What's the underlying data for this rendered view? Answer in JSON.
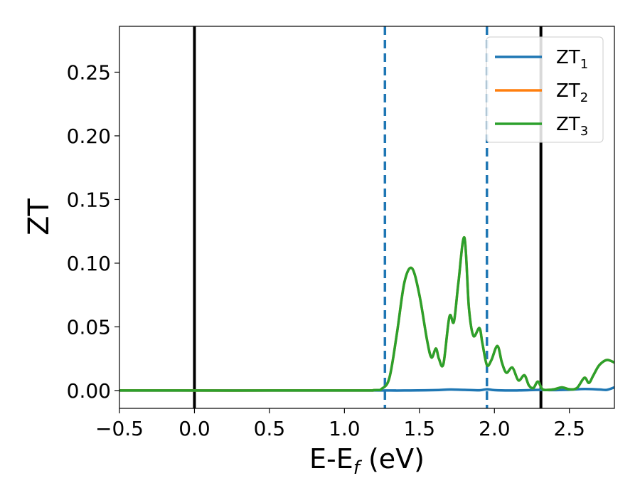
{
  "chart_data": {
    "type": "line",
    "title": "",
    "xlabel": {
      "main": "E-E",
      "sub": "f",
      "unit": " (eV)"
    },
    "ylabel": "ZT",
    "xlim": [
      -0.5,
      2.8
    ],
    "ylim": [
      -0.014,
      0.286
    ],
    "xticks": [
      -0.5,
      0.0,
      0.5,
      1.0,
      1.5,
      2.0,
      2.5
    ],
    "xtick_labels": [
      "−0.5",
      "0.0",
      "0.5",
      "1.0",
      "1.5",
      "2.0",
      "2.5"
    ],
    "yticks": [
      0.0,
      0.05,
      0.1,
      0.15,
      0.2,
      0.25
    ],
    "ytick_labels": [
      "0.00",
      "0.05",
      "0.10",
      "0.15",
      "0.20",
      "0.25"
    ],
    "grid": false,
    "legend_position": "top-right",
    "vlines": [
      {
        "x": 0.0,
        "style": "solid",
        "color": "#000000"
      },
      {
        "x": 2.31,
        "style": "solid",
        "color": "#000000"
      },
      {
        "x": 1.27,
        "style": "dashed",
        "color": "#1f77b4"
      },
      {
        "x": 1.95,
        "style": "dashed",
        "color": "#1f77b4"
      }
    ],
    "series": [
      {
        "name": "ZT",
        "sub": "1",
        "color": "#1f77b4",
        "x": [
          -0.5,
          1.2,
          1.27,
          1.4,
          1.6,
          1.7,
          1.8,
          1.9,
          1.95,
          2.0,
          2.1,
          2.2,
          2.3,
          2.4,
          2.5,
          2.6,
          2.7,
          2.75,
          2.8
        ],
        "y": [
          0.0,
          0.0,
          0.0,
          0.0,
          0.0003,
          0.0008,
          0.0005,
          0.0002,
          0.001,
          0.0003,
          0.0,
          0.0002,
          0.0005,
          0.0003,
          0.0006,
          0.0012,
          0.0008,
          0.0005,
          0.0025
        ]
      },
      {
        "name": "ZT",
        "sub": "2",
        "color": "#ff7f0e",
        "x": [
          -0.5,
          1.0,
          1.2,
          1.25,
          1.3,
          1.35,
          1.4,
          1.45,
          1.5,
          1.55,
          1.58,
          1.61,
          1.63,
          1.66,
          1.7,
          1.73,
          1.76,
          1.8,
          1.83,
          1.86,
          1.9,
          1.92,
          1.95,
          1.98,
          2.02,
          2.05,
          2.08,
          2.12,
          2.16,
          2.2,
          2.23,
          2.26,
          2.29,
          2.32,
          2.36,
          2.4,
          2.45,
          2.5,
          2.55,
          2.6,
          2.63,
          2.66,
          2.7,
          2.75,
          2.8
        ],
        "y": [
          0.0,
          0.0,
          0.0003,
          0.0015,
          0.01,
          0.045,
          0.085,
          0.096,
          0.075,
          0.04,
          0.026,
          0.033,
          0.025,
          0.021,
          0.058,
          0.054,
          0.085,
          0.12,
          0.065,
          0.043,
          0.049,
          0.037,
          0.02,
          0.024,
          0.035,
          0.022,
          0.014,
          0.018,
          0.008,
          0.012,
          0.004,
          0.002,
          0.007,
          0.001,
          0.0005,
          0.001,
          0.0025,
          0.001,
          0.002,
          0.01,
          0.006,
          0.012,
          0.02,
          0.024,
          0.022
        ]
      },
      {
        "name": "ZT",
        "sub": "3",
        "color": "#2ca02c",
        "x": [
          -0.5,
          1.0,
          1.2,
          1.25,
          1.3,
          1.35,
          1.4,
          1.45,
          1.5,
          1.55,
          1.58,
          1.61,
          1.63,
          1.66,
          1.7,
          1.73,
          1.76,
          1.8,
          1.83,
          1.86,
          1.9,
          1.92,
          1.95,
          1.98,
          2.02,
          2.05,
          2.08,
          2.12,
          2.16,
          2.2,
          2.23,
          2.26,
          2.29,
          2.32,
          2.36,
          2.4,
          2.45,
          2.5,
          2.55,
          2.6,
          2.63,
          2.66,
          2.7,
          2.75,
          2.8
        ],
        "y": [
          0.0,
          0.0,
          0.0003,
          0.0015,
          0.01,
          0.045,
          0.085,
          0.096,
          0.075,
          0.04,
          0.026,
          0.033,
          0.025,
          0.021,
          0.058,
          0.054,
          0.085,
          0.12,
          0.065,
          0.043,
          0.049,
          0.037,
          0.02,
          0.024,
          0.035,
          0.022,
          0.014,
          0.018,
          0.008,
          0.012,
          0.004,
          0.002,
          0.007,
          0.001,
          0.0005,
          0.001,
          0.0025,
          0.001,
          0.002,
          0.01,
          0.006,
          0.012,
          0.02,
          0.024,
          0.022
        ]
      }
    ]
  }
}
